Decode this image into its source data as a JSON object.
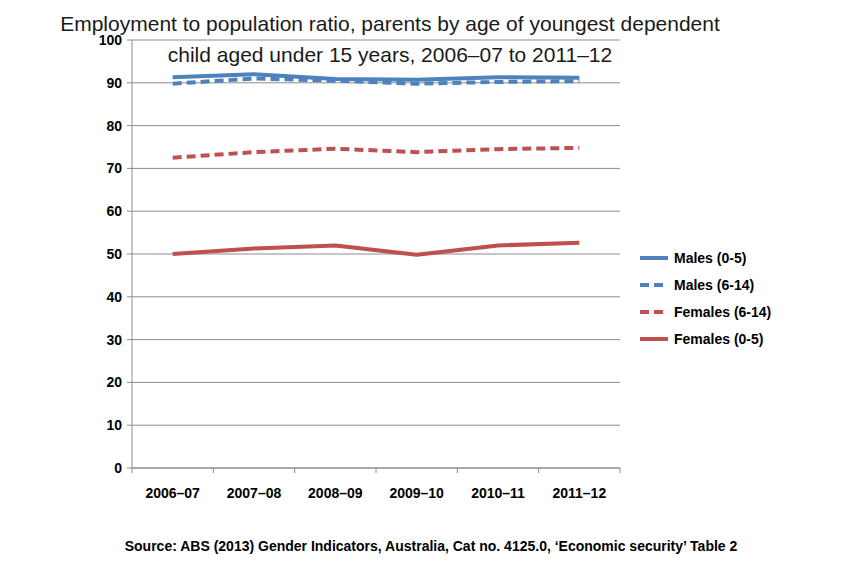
{
  "chart_data": {
    "type": "line",
    "title": "Employment to population ratio, parents by age of youngest dependent child aged under 15 years, 2006–07 to 2011–12",
    "annotations": [
      "Source: ABS (2013) Gender Indicators, Australia, Cat no. 4125.0, ‘Economic security’ Table 2"
    ],
    "categories": [
      "2006–07",
      "2007–08",
      "2008–09",
      "2009–10",
      "2010–11",
      "2011–12"
    ],
    "series": [
      {
        "name": "Males (0-5)",
        "color": "#4f81bd",
        "line_style": "solid",
        "values": [
          91.3,
          92.0,
          90.9,
          90.7,
          91.3,
          91.2
        ]
      },
      {
        "name": "Males (6-14)",
        "color": "#4f81bd",
        "line_style": "dashed",
        "values": [
          89.8,
          91.0,
          90.5,
          89.8,
          90.2,
          90.4
        ]
      },
      {
        "name": "Females (6-14)",
        "color": "#c0504d",
        "line_style": "dashed",
        "values": [
          72.5,
          73.8,
          74.6,
          73.8,
          74.5,
          74.8
        ]
      },
      {
        "name": "Females (0-5)",
        "color": "#c0504d",
        "line_style": "solid",
        "values": [
          50.0,
          51.3,
          52.0,
          49.8,
          52.0,
          52.6
        ]
      }
    ],
    "ylim": [
      0,
      100
    ],
    "yticks": [
      0,
      10,
      20,
      30,
      40,
      50,
      60,
      70,
      80,
      90,
      100
    ],
    "grid": true,
    "legend": "right"
  }
}
